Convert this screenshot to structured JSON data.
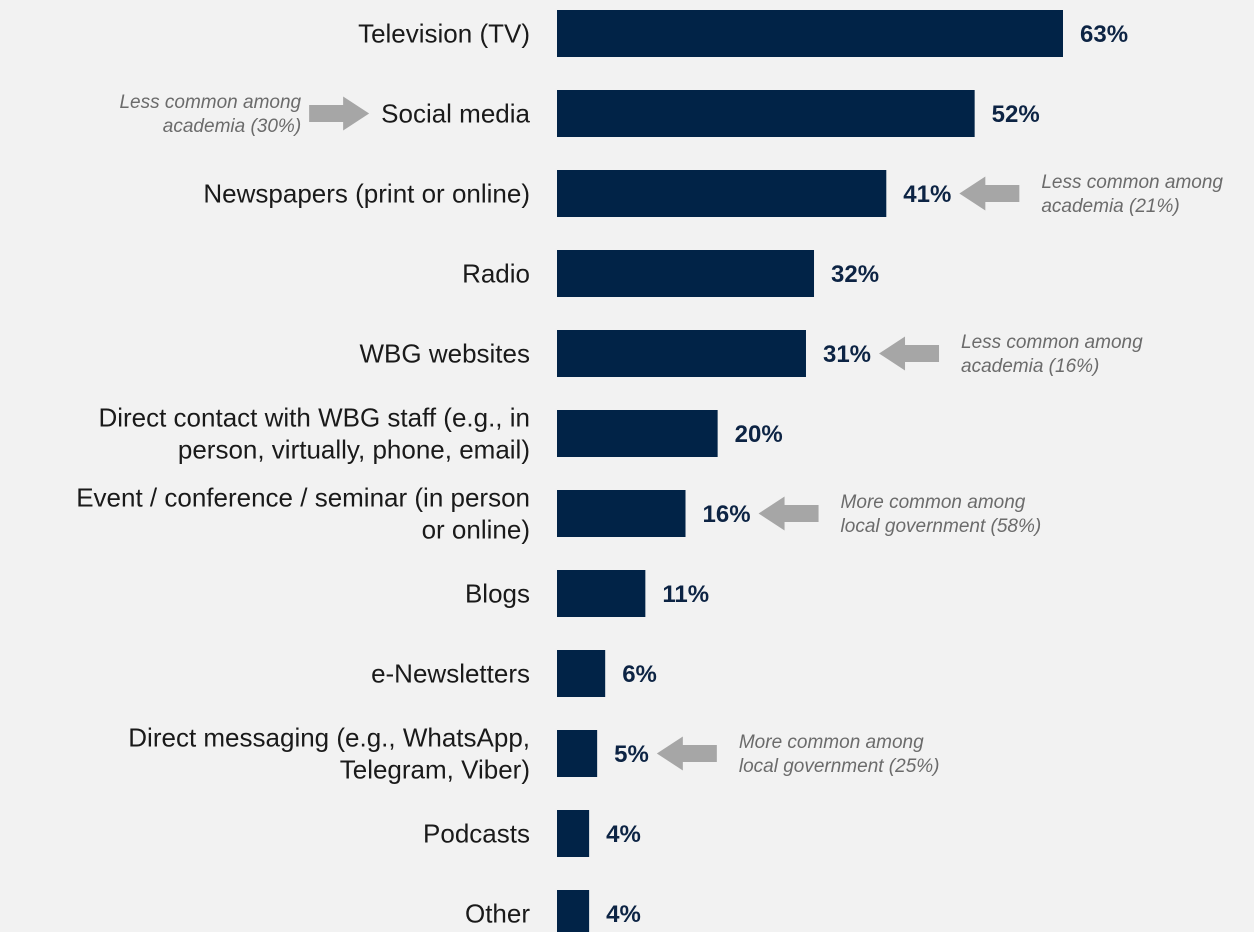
{
  "colors": {
    "background": "#f2f2f2",
    "bar": "#012347",
    "value_text": "#0d2444",
    "note_text": "#6b6b6b",
    "arrow": "#a6a6a6"
  },
  "chart_data": {
    "type": "bar",
    "orientation": "horizontal",
    "categories": [
      "Television (TV)",
      "Social media",
      "Newspapers (print or online)",
      "Radio",
      "WBG websites",
      "Direct contact with WBG staff (e.g., in person, virtually, phone, email)",
      "Event / conference / seminar (in person or online)",
      "Blogs",
      "e-Newsletters",
      "Direct messaging (e.g., WhatsApp, Telegram, Viber)",
      "Podcasts",
      "Other"
    ],
    "category_lines": [
      [
        "Television (TV)"
      ],
      [
        "Social media"
      ],
      [
        "Newspapers (print or online)"
      ],
      [
        "Radio"
      ],
      [
        "WBG websites"
      ],
      [
        "Direct contact with WBG staff (e.g., in",
        "person, virtually, phone, email)"
      ],
      [
        "Event / conference / seminar (in person",
        "or online)"
      ],
      [
        "Blogs"
      ],
      [
        "e-Newsletters"
      ],
      [
        "Direct messaging (e.g., WhatsApp,",
        "Telegram, Viber)"
      ],
      [
        "Podcasts"
      ],
      [
        "Other"
      ]
    ],
    "values": [
      63,
      52,
      41,
      32,
      31,
      20,
      16,
      11,
      6,
      5,
      4,
      4
    ],
    "value_labels": [
      "63%",
      "52%",
      "41%",
      "32%",
      "31%",
      "20%",
      "16%",
      "11%",
      "6%",
      "5%",
      "4%",
      "4%"
    ],
    "unit": "%",
    "xlim": [
      0,
      63
    ],
    "grid": false,
    "legend": "none",
    "annotations": [
      {
        "category_index": 1,
        "side": "left",
        "lines": [
          "Less common among",
          "academia (30%)"
        ]
      },
      {
        "category_index": 2,
        "side": "right",
        "lines": [
          "Less common among",
          "academia (21%)"
        ]
      },
      {
        "category_index": 4,
        "side": "right",
        "lines": [
          "Less common among",
          "academia (16%)"
        ]
      },
      {
        "category_index": 6,
        "side": "right",
        "lines": [
          "More common among",
          "local government (58%)"
        ]
      },
      {
        "category_index": 9,
        "side": "right",
        "lines": [
          "More common among",
          "local government (25%)"
        ]
      }
    ]
  }
}
